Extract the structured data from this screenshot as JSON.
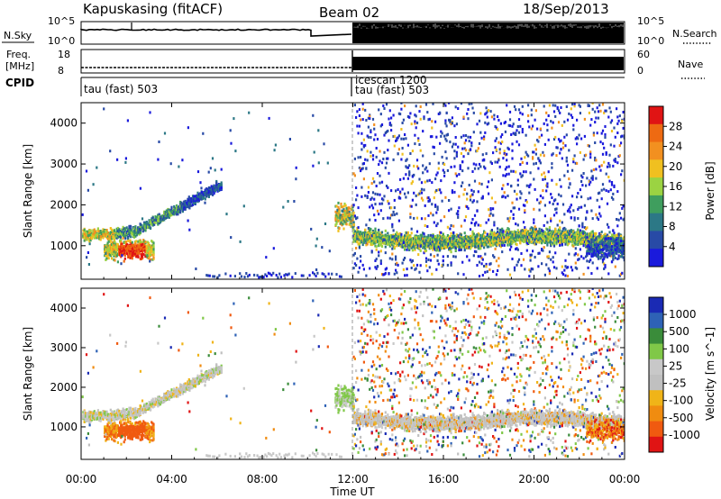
{
  "header": {
    "station": "Kapuskasing (fitACF)",
    "beam": "Beam 02",
    "date": "18/Sep/2013"
  },
  "strips": {
    "nsky": {
      "label": "N.Sky",
      "ticks_left": [
        "10^5",
        "10^0"
      ],
      "right_label": "N.Search",
      "ticks_right": [
        "10^5",
        "10^0"
      ]
    },
    "freq": {
      "label_lines": [
        "Freq.",
        "[MHz]"
      ],
      "ticks_left": [
        "18",
        "8"
      ],
      "right_label": "Nave",
      "ticks_right": [
        "60",
        "0"
      ]
    },
    "cpid": {
      "label": "CPID",
      "modes_left": [
        "tau (fast) 503"
      ],
      "modes_right": [
        "icescan 1200",
        "tau (fast) 503"
      ]
    }
  },
  "colors": {
    "power": [
      "#1a1adc",
      "#284aa6",
      "#2c7886",
      "#3f9e5e",
      "#9bd342",
      "#f0c020",
      "#f29020",
      "#ee6a12",
      "#e01414"
    ],
    "velocity": [
      "#1a2ab4",
      "#2e62b6",
      "#3a8c3a",
      "#80c848",
      "#c8c8c8",
      "#c0c0c0",
      "#f0b418",
      "#f08c10",
      "#f05a10",
      "#e01414"
    ]
  },
  "chart_data": [
    {
      "type": "heatmap",
      "title": "",
      "xlabel": "Time UT",
      "ylabel": "Slant Range [km]",
      "x_ticks": [
        "00:00",
        "04:00",
        "08:00",
        "12:00",
        "16:00",
        "20:00",
        "00:00"
      ],
      "y_ticks": [
        "1000",
        "2000",
        "3000",
        "4000"
      ],
      "xlim": [
        0,
        24
      ],
      "ylim": [
        180,
        4500
      ],
      "colorbar": {
        "label": "Power [dB]",
        "ticks": [
          "4",
          "8",
          "12",
          "16",
          "20",
          "24",
          "28"
        ],
        "range": [
          0,
          30
        ]
      },
      "features": [
        {
          "start_ut": 0.0,
          "end_ut": 6.0,
          "description": "band near 1200 km rising to 2500 km"
        },
        {
          "start_ut": 1.0,
          "end_ut": 3.2,
          "description": "strong echoes 700-1400 km"
        },
        {
          "start_ut": 11.3,
          "end_ut": 24.0,
          "description": "band near 1000-1300 km with scatter to 4500 km"
        }
      ]
    },
    {
      "type": "heatmap",
      "title": "",
      "xlabel": "Time UT",
      "ylabel": "Slant Range [km]",
      "x_ticks": [
        "00:00",
        "04:00",
        "08:00",
        "12:00",
        "16:00",
        "20:00",
        "00:00"
      ],
      "y_ticks": [
        "1000",
        "2000",
        "3000",
        "4000"
      ],
      "xlim": [
        0,
        24
      ],
      "ylim": [
        180,
        4500
      ],
      "colorbar": {
        "label": "Velocity [m s^-1]",
        "ticks": [
          "1000",
          "500",
          "100",
          "25",
          "-25",
          "-100",
          "-500",
          "-1000"
        ],
        "range": [
          -1200,
          1200
        ]
      },
      "features": [
        {
          "start_ut": 0.0,
          "end_ut": 6.0,
          "description": "mostly near zero velocity (grey)"
        },
        {
          "start_ut": 1.0,
          "end_ut": 3.2,
          "description": "negative velocities -100 to -500 m/s near 700-1300 km"
        },
        {
          "start_ut": 11.3,
          "end_ut": 24.0,
          "description": "mostly grey band near 1000 km, mixed scatter"
        }
      ]
    }
  ]
}
